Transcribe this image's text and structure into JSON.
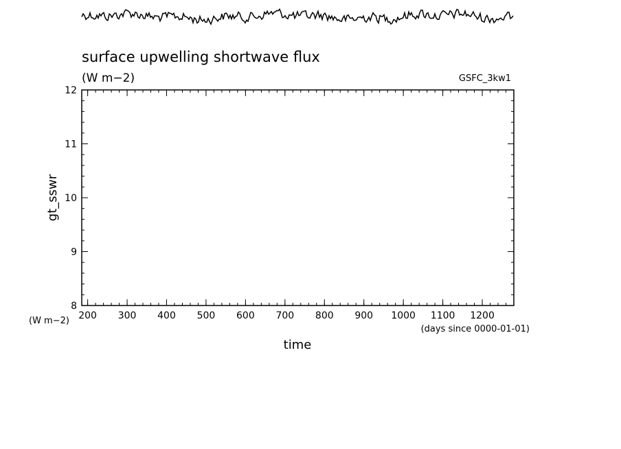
{
  "chart_data": {
    "type": "line",
    "title": "surface upwelling shortwave flux",
    "units": "(W m−2)",
    "source_label": "GSFC_3kw1",
    "ylabel": "gt_sswr",
    "y_units_label": "(W m−2)",
    "xlabel": "time",
    "x_units_label": "(days since 0000-01-01)",
    "xlim": [
      185,
      1280
    ],
    "ylim": [
      8,
      12
    ],
    "x_ticks": [
      200,
      300,
      400,
      500,
      600,
      700,
      800,
      900,
      1000,
      1100,
      1200
    ],
    "y_ticks": [
      8,
      9,
      10,
      11,
      12
    ],
    "x_minor_step": 20,
    "y_minor_step": 0.2,
    "series": [],
    "signal_strip": {
      "description_visible": "noisy trace above plot",
      "color": "#000000"
    },
    "grid": false
  }
}
